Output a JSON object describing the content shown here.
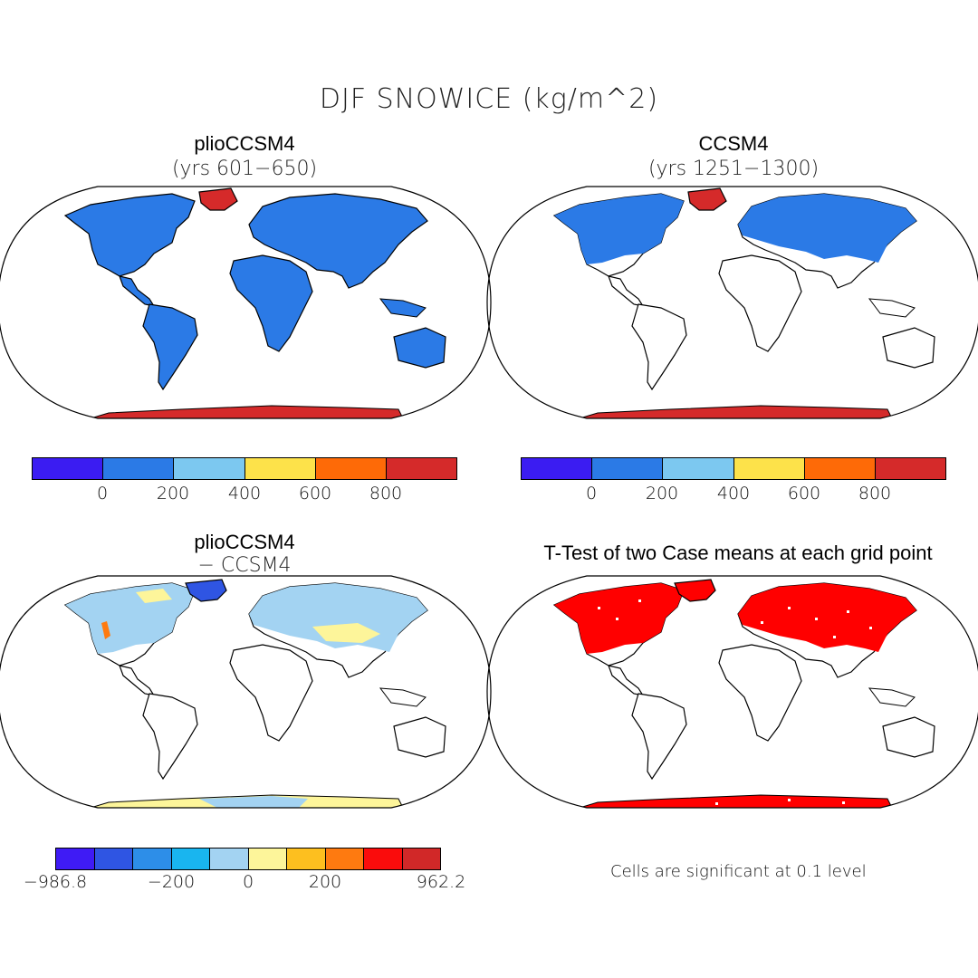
{
  "figure": {
    "title": "DJF SNOWICE (kg/m^2)"
  },
  "panels": [
    {
      "id": "plio",
      "title": "plioCCSM4",
      "subtitle": "(yrs 601−650)",
      "colorbar": {
        "colors": [
          "#3b1cf2",
          "#2b7ae6",
          "#7cc8f0",
          "#fde24a",
          "#fe6a07",
          "#d52a2a"
        ],
        "ticks": [
          "0",
          "200",
          "400",
          "600",
          "800"
        ]
      }
    },
    {
      "id": "ccsm4",
      "title": "CCSM4",
      "subtitle": "(yrs 1251−1300)",
      "colorbar": {
        "colors": [
          "#3b1cf2",
          "#2b7ae6",
          "#7cc8f0",
          "#fde24a",
          "#fe6a07",
          "#d52a2a"
        ],
        "ticks": [
          "0",
          "200",
          "400",
          "600",
          "800"
        ]
      }
    },
    {
      "id": "diff",
      "title": "plioCCSM4",
      "subtitle": "− CCSM4",
      "colorbar": {
        "colors": [
          "#3f1bf5",
          "#2f55e3",
          "#2d8ee8",
          "#19b5ef",
          "#a3d3f2",
          "#fdf59a",
          "#fdbf1f",
          "#fe7a10",
          "#fa0c0c",
          "#d12828"
        ],
        "ticks": [
          "−986.8",
          "−200",
          "0",
          "200",
          "962.2"
        ]
      }
    },
    {
      "id": "ttest",
      "title": "T-Test of two Case means at each grid point",
      "note": "Cells are significant at 0.1 level",
      "color": "#ff0000"
    }
  ]
}
